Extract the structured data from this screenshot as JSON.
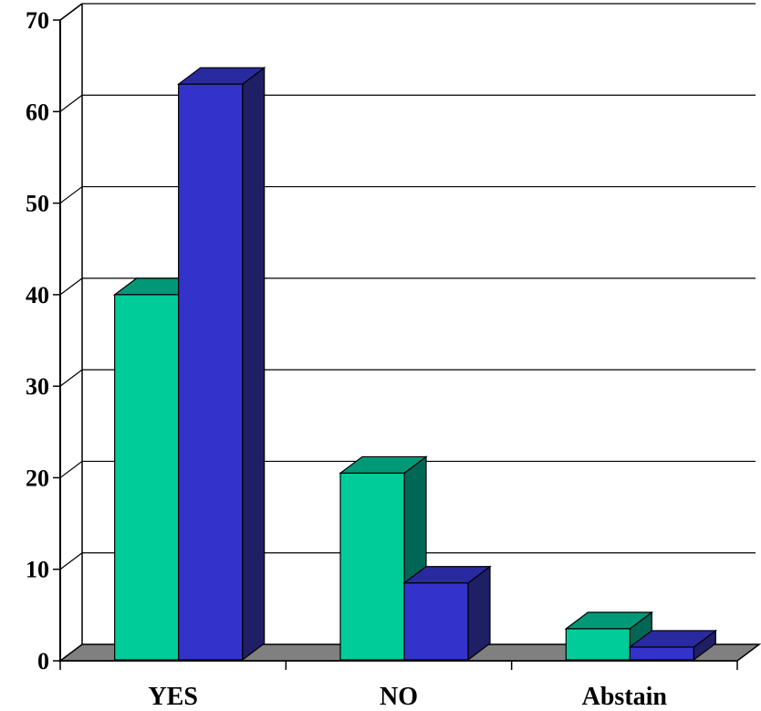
{
  "chart_data": {
    "type": "bar",
    "categories": [
      "YES",
      "NO",
      "Abstain"
    ],
    "series": [
      {
        "values": [
          40,
          20.5,
          3.5
        ],
        "color": "#00cc99",
        "top_color": "#009977",
        "side_color": "#006655"
      },
      {
        "values": [
          63,
          8.5,
          1.5
        ],
        "color": "#3333cc",
        "top_color": "#2a2aa0",
        "side_color": "#1f1f66"
      }
    ],
    "ylim": [
      0,
      70
    ],
    "yticks": [
      "0",
      "10",
      "20",
      "30",
      "40",
      "50",
      "60",
      "70"
    ],
    "grid": true,
    "floor_color": "#808080",
    "three_d": true
  }
}
